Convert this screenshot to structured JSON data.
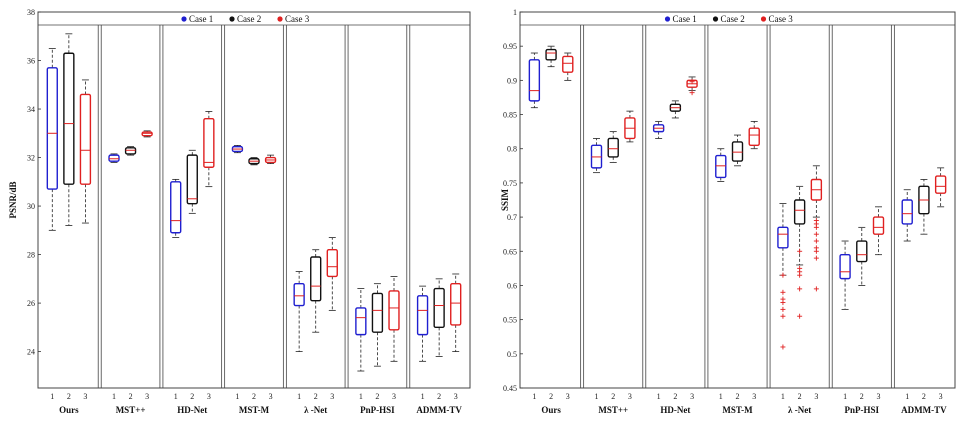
{
  "colors": {
    "case1": "#1f1fd0",
    "case2": "#111111",
    "case3": "#e02020",
    "median": "#e02020",
    "frame": "#444444"
  },
  "legend": [
    {
      "label": "Case 1",
      "color": "#1f1fd0"
    },
    {
      "label": "Case 2",
      "color": "#111111"
    },
    {
      "label": "Case 3",
      "color": "#e02020"
    }
  ],
  "chart_data": [
    {
      "type": "boxplot",
      "ylabel": "PSNR/dB",
      "ylim": [
        22.5,
        38
      ],
      "yticks": [
        24,
        26,
        28,
        30,
        32,
        34,
        36,
        38
      ],
      "case_labels": [
        "1",
        "2",
        "3"
      ],
      "methods": [
        {
          "name": "Ours",
          "boxes": [
            {
              "min": 29.0,
              "q1": 30.7,
              "median": 33.0,
              "q3": 35.7,
              "max": 36.5,
              "outliers": []
            },
            {
              "min": 29.2,
              "q1": 30.9,
              "median": 33.4,
              "q3": 36.3,
              "max": 37.1,
              "outliers": []
            },
            {
              "min": 29.3,
              "q1": 30.9,
              "median": 32.3,
              "q3": 34.6,
              "max": 35.2,
              "outliers": []
            }
          ]
        },
        {
          "name": "MST++",
          "boxes": [
            {
              "min": 31.8,
              "q1": 31.85,
              "median": 31.95,
              "q3": 32.1,
              "max": 32.15,
              "outliers": []
            },
            {
              "min": 32.1,
              "q1": 32.15,
              "median": 32.3,
              "q3": 32.4,
              "max": 32.45,
              "outliers": []
            },
            {
              "min": 32.85,
              "q1": 32.9,
              "median": 33.0,
              "q3": 33.05,
              "max": 33.1,
              "outliers": []
            }
          ]
        },
        {
          "name": "HD-Net",
          "boxes": [
            {
              "min": 28.7,
              "q1": 28.9,
              "median": 29.4,
              "q3": 31.0,
              "max": 31.1,
              "outliers": []
            },
            {
              "min": 29.7,
              "q1": 30.1,
              "median": 30.3,
              "q3": 32.1,
              "max": 32.3,
              "outliers": []
            },
            {
              "min": 30.8,
              "q1": 31.6,
              "median": 31.8,
              "q3": 33.6,
              "max": 33.9,
              "outliers": []
            }
          ]
        },
        {
          "name": "MST-M",
          "boxes": [
            {
              "min": 32.2,
              "q1": 32.25,
              "median": 32.35,
              "q3": 32.45,
              "max": 32.5,
              "outliers": []
            },
            {
              "min": 31.7,
              "q1": 31.75,
              "median": 31.85,
              "q3": 31.95,
              "max": 32.0,
              "outliers": []
            },
            {
              "min": 31.75,
              "q1": 31.8,
              "median": 31.9,
              "q3": 32.0,
              "max": 32.1,
              "outliers": []
            }
          ]
        },
        {
          "name": "λ -Net",
          "boxes": [
            {
              "min": 24.0,
              "q1": 25.9,
              "median": 26.3,
              "q3": 26.8,
              "max": 27.3,
              "outliers": []
            },
            {
              "min": 24.8,
              "q1": 26.1,
              "median": 26.7,
              "q3": 27.9,
              "max": 28.2,
              "outliers": []
            },
            {
              "min": 25.7,
              "q1": 27.1,
              "median": 27.5,
              "q3": 28.2,
              "max": 28.7,
              "outliers": []
            }
          ]
        },
        {
          "name": "PnP-HSI",
          "boxes": [
            {
              "min": 23.2,
              "q1": 24.7,
              "median": 25.4,
              "q3": 25.8,
              "max": 26.6,
              "outliers": []
            },
            {
              "min": 23.4,
              "q1": 24.8,
              "median": 25.7,
              "q3": 26.4,
              "max": 26.8,
              "outliers": []
            },
            {
              "min": 23.6,
              "q1": 24.9,
              "median": 25.8,
              "q3": 26.5,
              "max": 27.1,
              "outliers": []
            }
          ]
        },
        {
          "name": "ADMM-TV",
          "boxes": [
            {
              "min": 23.6,
              "q1": 24.7,
              "median": 25.7,
              "q3": 26.3,
              "max": 26.7,
              "outliers": []
            },
            {
              "min": 23.8,
              "q1": 25.0,
              "median": 25.9,
              "q3": 26.6,
              "max": 27.0,
              "outliers": []
            },
            {
              "min": 24.0,
              "q1": 25.1,
              "median": 26.0,
              "q3": 26.8,
              "max": 27.2,
              "outliers": []
            }
          ]
        }
      ]
    },
    {
      "type": "boxplot",
      "ylabel": "SSIM",
      "ylim": [
        0.45,
        1.0
      ],
      "yticks": [
        0.45,
        0.5,
        0.55,
        0.6,
        0.65,
        0.7,
        0.75,
        0.8,
        0.85,
        0.9,
        0.95,
        1
      ],
      "case_labels": [
        "1",
        "2",
        "3"
      ],
      "methods": [
        {
          "name": "Ours",
          "boxes": [
            {
              "min": 0.86,
              "q1": 0.87,
              "median": 0.885,
              "q3": 0.93,
              "max": 0.94,
              "outliers": []
            },
            {
              "min": 0.92,
              "q1": 0.93,
              "median": 0.94,
              "q3": 0.945,
              "max": 0.95,
              "outliers": []
            },
            {
              "min": 0.9,
              "q1": 0.912,
              "median": 0.925,
              "q3": 0.935,
              "max": 0.94,
              "outliers": []
            }
          ]
        },
        {
          "name": "MST++",
          "boxes": [
            {
              "min": 0.765,
              "q1": 0.772,
              "median": 0.788,
              "q3": 0.805,
              "max": 0.815,
              "outliers": []
            },
            {
              "min": 0.78,
              "q1": 0.788,
              "median": 0.8,
              "q3": 0.815,
              "max": 0.825,
              "outliers": []
            },
            {
              "min": 0.81,
              "q1": 0.815,
              "median": 0.83,
              "q3": 0.845,
              "max": 0.855,
              "outliers": []
            }
          ]
        },
        {
          "name": "HD-Net",
          "boxes": [
            {
              "min": 0.815,
              "q1": 0.825,
              "median": 0.83,
              "q3": 0.835,
              "max": 0.84,
              "outliers": []
            },
            {
              "min": 0.845,
              "q1": 0.855,
              "median": 0.86,
              "q3": 0.865,
              "max": 0.87,
              "outliers": []
            },
            {
              "min": 0.885,
              "q1": 0.89,
              "median": 0.895,
              "q3": 0.9,
              "max": 0.905,
              "outliers": [
                0.898,
                0.882
              ]
            }
          ]
        },
        {
          "name": "MST-M",
          "boxes": [
            {
              "min": 0.752,
              "q1": 0.758,
              "median": 0.775,
              "q3": 0.79,
              "max": 0.8,
              "outliers": []
            },
            {
              "min": 0.775,
              "q1": 0.782,
              "median": 0.795,
              "q3": 0.81,
              "max": 0.82,
              "outliers": []
            },
            {
              "min": 0.8,
              "q1": 0.805,
              "median": 0.82,
              "q3": 0.83,
              "max": 0.84,
              "outliers": []
            }
          ]
        },
        {
          "name": "λ -Net",
          "boxes": [
            {
              "min": 0.615,
              "q1": 0.655,
              "median": 0.675,
              "q3": 0.685,
              "max": 0.72,
              "outliers": [
                0.51,
                0.555,
                0.565,
                0.575,
                0.58,
                0.59,
                0.615
              ]
            },
            {
              "min": 0.63,
              "q1": 0.69,
              "median": 0.71,
              "q3": 0.725,
              "max": 0.745,
              "outliers": [
                0.555,
                0.595,
                0.615,
                0.62,
                0.625,
                0.65
              ]
            },
            {
              "min": 0.7,
              "q1": 0.725,
              "median": 0.74,
              "q3": 0.755,
              "max": 0.775,
              "outliers": [
                0.595,
                0.64,
                0.65,
                0.655,
                0.665,
                0.675,
                0.685,
                0.69,
                0.695
              ]
            }
          ]
        },
        {
          "name": "PnP-HSI",
          "boxes": [
            {
              "min": 0.565,
              "q1": 0.61,
              "median": 0.62,
              "q3": 0.645,
              "max": 0.665,
              "outliers": []
            },
            {
              "min": 0.6,
              "q1": 0.635,
              "median": 0.645,
              "q3": 0.665,
              "max": 0.685,
              "outliers": []
            },
            {
              "min": 0.645,
              "q1": 0.675,
              "median": 0.685,
              "q3": 0.7,
              "max": 0.715,
              "outliers": []
            }
          ]
        },
        {
          "name": "ADMM-TV",
          "boxes": [
            {
              "min": 0.665,
              "q1": 0.69,
              "median": 0.705,
              "q3": 0.725,
              "max": 0.74,
              "outliers": []
            },
            {
              "min": 0.675,
              "q1": 0.705,
              "median": 0.725,
              "q3": 0.745,
              "max": 0.755,
              "outliers": []
            },
            {
              "min": 0.715,
              "q1": 0.735,
              "median": 0.745,
              "q3": 0.76,
              "max": 0.772,
              "outliers": []
            }
          ]
        }
      ]
    }
  ]
}
